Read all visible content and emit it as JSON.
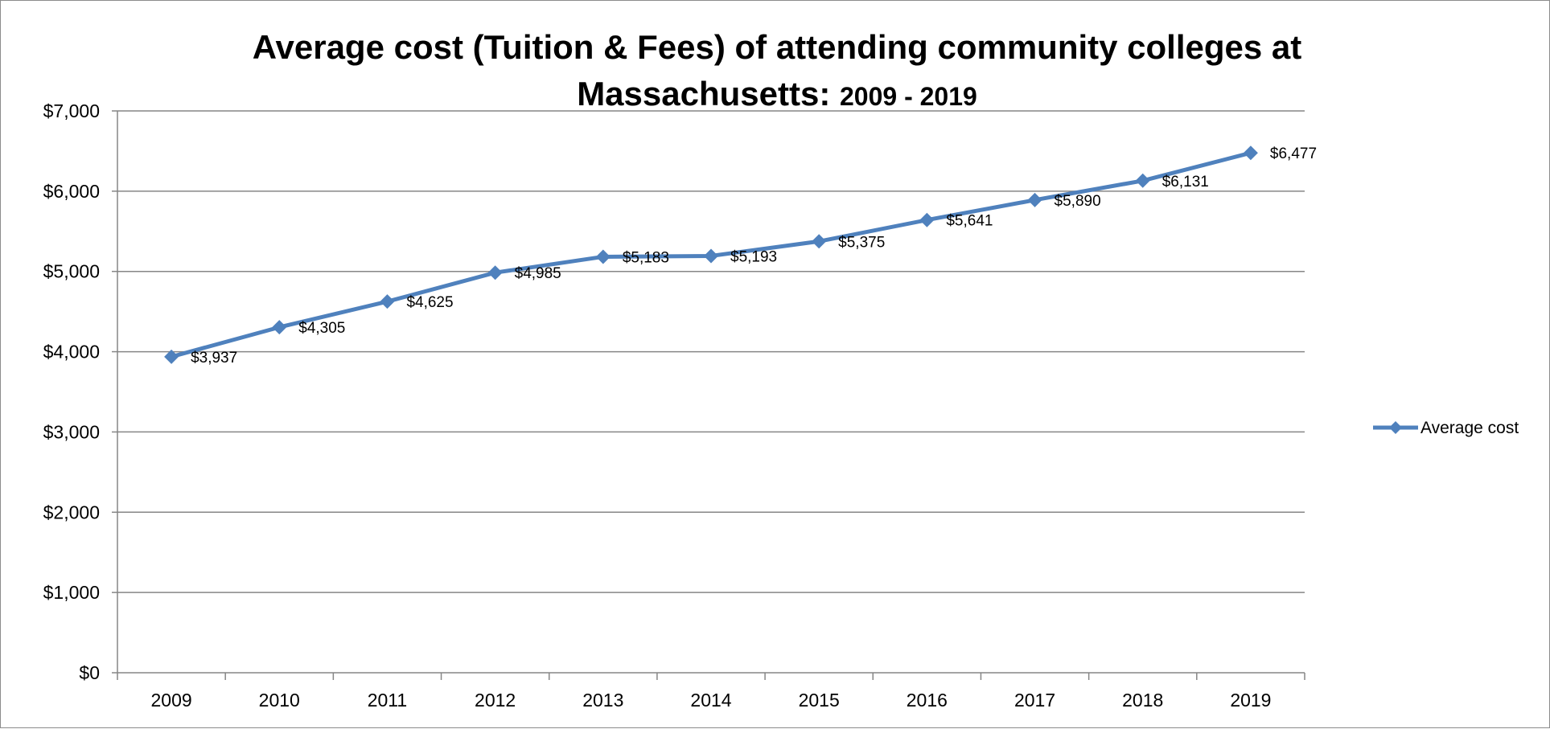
{
  "chart_data": {
    "type": "line",
    "title_line1": "Average cost (Tuition & Fees) of attending community colleges at",
    "title_line2_main": "Massachusetts: ",
    "title_line2_years": "2009 - 2019",
    "categories": [
      "2009",
      "2010",
      "2011",
      "2012",
      "2013",
      "2014",
      "2015",
      "2016",
      "2017",
      "2018",
      "2019"
    ],
    "series": [
      {
        "name": "Average cost",
        "values": [
          3937,
          4305,
          4625,
          4985,
          5183,
          5193,
          5375,
          5641,
          5890,
          6131,
          6477
        ],
        "data_labels": [
          "$3,937",
          "$4,305",
          "$4,625",
          "$4,985",
          "$5,183",
          "$5,193",
          "$5,375",
          "$5,641",
          "$5,890",
          "$6,131",
          "$6,477"
        ],
        "color": "#4f81bd",
        "marker": "diamond"
      }
    ],
    "ylim": [
      0,
      7000
    ],
    "yticks": [
      0,
      1000,
      2000,
      3000,
      4000,
      5000,
      6000,
      7000
    ],
    "ytick_labels": [
      "$0",
      "$1,000",
      "$2,000",
      "$3,000",
      "$4,000",
      "$5,000",
      "$6,000",
      "$7,000"
    ],
    "grid": true,
    "legend_position": "right"
  }
}
